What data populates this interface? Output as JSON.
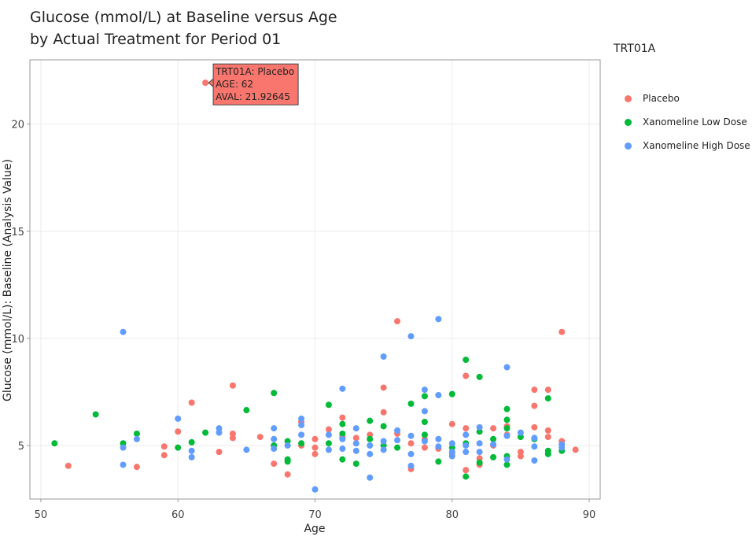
{
  "title_line1": "Glucose (mmol/L) at Baseline versus Age",
  "title_line2": "by Actual Treatment for Period 01",
  "legend": {
    "title": "TRT01A",
    "items": [
      {
        "label": "Placebo",
        "color": "#F8766D"
      },
      {
        "label": "Xanomeline Low Dose",
        "color": "#00BA38"
      },
      {
        "label": "Xanomeline High Dose",
        "color": "#619CFF"
      }
    ]
  },
  "tooltip": {
    "line1": "TRT01A: Placebo",
    "line2": "AGE: 62",
    "line3": "AVAL: 21.92645",
    "age": 62,
    "aval": 21.92645
  },
  "chart_data": {
    "type": "scatter",
    "title": "Glucose (mmol/L) at Baseline versus Age by Actual Treatment for Period 01",
    "xlabel": "Age",
    "ylabel": "Glucose (mmol/L): Baseline (Analysis Value)",
    "xlim": [
      49.2,
      90.8
    ],
    "ylim": [
      2.5,
      23
    ],
    "xticks": [
      50,
      60,
      70,
      80,
      90
    ],
    "yticks": [
      5,
      10,
      15,
      20
    ],
    "grid": true,
    "legend_position": "right",
    "series": [
      {
        "name": "Placebo",
        "color": "#F8766D",
        "points": [
          [
            52,
            4.05
          ],
          [
            57,
            4.0
          ],
          [
            59,
            4.55
          ],
          [
            59,
            4.95
          ],
          [
            60,
            5.65
          ],
          [
            61,
            7.0
          ],
          [
            62,
            21.93
          ],
          [
            63,
            4.7
          ],
          [
            64,
            7.8
          ],
          [
            64,
            5.55
          ],
          [
            64,
            5.35
          ],
          [
            66,
            5.4
          ],
          [
            67,
            4.15
          ],
          [
            68,
            3.65
          ],
          [
            69,
            5.0
          ],
          [
            69,
            6.1
          ],
          [
            70,
            5.3
          ],
          [
            70,
            4.9
          ],
          [
            70,
            4.6
          ],
          [
            71,
            5.75
          ],
          [
            72,
            6.3
          ],
          [
            72,
            5.4
          ],
          [
            73,
            5.35
          ],
          [
            74,
            5.5
          ],
          [
            75,
            7.7
          ],
          [
            75,
            6.55
          ],
          [
            76,
            10.8
          ],
          [
            76,
            5.55
          ],
          [
            77,
            3.9
          ],
          [
            77,
            5.1
          ],
          [
            78,
            5.3
          ],
          [
            78,
            4.9
          ],
          [
            79,
            4.85
          ],
          [
            80,
            6.0
          ],
          [
            80,
            4.6
          ],
          [
            81,
            8.25
          ],
          [
            81,
            5.8
          ],
          [
            81,
            3.85
          ],
          [
            82,
            4.4
          ],
          [
            82,
            4.1
          ],
          [
            83,
            5.8
          ],
          [
            83,
            5.0
          ],
          [
            84,
            5.9
          ],
          [
            84,
            5.5
          ],
          [
            85,
            4.7
          ],
          [
            85,
            4.5
          ],
          [
            86,
            7.6
          ],
          [
            86,
            6.85
          ],
          [
            86,
            5.85
          ],
          [
            87,
            7.6
          ],
          [
            87,
            5.7
          ],
          [
            87,
            5.4
          ],
          [
            88,
            10.3
          ],
          [
            88,
            5.2
          ],
          [
            89,
            4.8
          ]
        ]
      },
      {
        "name": "Xanomeline Low Dose",
        "color": "#00BA38",
        "points": [
          [
            51,
            5.1
          ],
          [
            54,
            6.45
          ],
          [
            56,
            5.1
          ],
          [
            57,
            5.55
          ],
          [
            60,
            4.9
          ],
          [
            61,
            5.15
          ],
          [
            62,
            5.6
          ],
          [
            65,
            6.65
          ],
          [
            67,
            7.45
          ],
          [
            67,
            5.0
          ],
          [
            68,
            5.2
          ],
          [
            68,
            4.35
          ],
          [
            68,
            4.25
          ],
          [
            69,
            5.1
          ],
          [
            71,
            6.9
          ],
          [
            71,
            5.1
          ],
          [
            72,
            6.0
          ],
          [
            72,
            5.55
          ],
          [
            72,
            4.35
          ],
          [
            73,
            4.15
          ],
          [
            74,
            6.15
          ],
          [
            74,
            5.3
          ],
          [
            75,
            5.9
          ],
          [
            75,
            5.0
          ],
          [
            76,
            4.9
          ],
          [
            77,
            6.95
          ],
          [
            78,
            7.3
          ],
          [
            78,
            6.1
          ],
          [
            78,
            5.5
          ],
          [
            79,
            4.25
          ],
          [
            80,
            7.4
          ],
          [
            80,
            4.9
          ],
          [
            81,
            9.0
          ],
          [
            81,
            5.1
          ],
          [
            81,
            3.55
          ],
          [
            82,
            8.2
          ],
          [
            82,
            5.65
          ],
          [
            82,
            4.2
          ],
          [
            83,
            5.3
          ],
          [
            83,
            4.45
          ],
          [
            84,
            6.7
          ],
          [
            84,
            6.2
          ],
          [
            84,
            5.8
          ],
          [
            84,
            4.5
          ],
          [
            84,
            4.1
          ],
          [
            85,
            5.4
          ],
          [
            86,
            5.3
          ],
          [
            87,
            7.2
          ],
          [
            87,
            4.75
          ],
          [
            87,
            4.6
          ],
          [
            88,
            4.75
          ]
        ]
      },
      {
        "name": "Xanomeline High Dose",
        "color": "#619CFF",
        "points": [
          [
            56,
            10.3
          ],
          [
            56,
            4.9
          ],
          [
            56,
            4.1
          ],
          [
            57,
            5.3
          ],
          [
            60,
            6.25
          ],
          [
            61,
            4.75
          ],
          [
            61,
            4.45
          ],
          [
            63,
            5.8
          ],
          [
            63,
            5.6
          ],
          [
            65,
            4.8
          ],
          [
            67,
            5.8
          ],
          [
            67,
            5.3
          ],
          [
            67,
            4.85
          ],
          [
            68,
            5.0
          ],
          [
            69,
            6.25
          ],
          [
            69,
            5.5
          ],
          [
            69,
            5.95
          ],
          [
            70,
            2.95
          ],
          [
            71,
            5.5
          ],
          [
            71,
            4.8
          ],
          [
            72,
            7.65
          ],
          [
            72,
            5.3
          ],
          [
            72,
            4.85
          ],
          [
            73,
            5.8
          ],
          [
            73,
            5.1
          ],
          [
            73,
            4.75
          ],
          [
            74,
            5.0
          ],
          [
            74,
            4.6
          ],
          [
            74,
            3.5
          ],
          [
            75,
            9.15
          ],
          [
            75,
            5.2
          ],
          [
            75,
            4.8
          ],
          [
            76,
            5.7
          ],
          [
            76,
            5.25
          ],
          [
            77,
            10.1
          ],
          [
            77,
            5.45
          ],
          [
            77,
            4.6
          ],
          [
            77,
            4.05
          ],
          [
            78,
            7.6
          ],
          [
            78,
            6.6
          ],
          [
            78,
            5.2
          ],
          [
            79,
            10.9
          ],
          [
            79,
            7.35
          ],
          [
            79,
            5.3
          ],
          [
            79,
            4.95
          ],
          [
            80,
            5.1
          ],
          [
            80,
            4.7
          ],
          [
            80,
            4.5
          ],
          [
            81,
            5.5
          ],
          [
            81,
            5.0
          ],
          [
            81,
            4.7
          ],
          [
            82,
            5.85
          ],
          [
            82,
            5.1
          ],
          [
            82,
            4.7
          ],
          [
            83,
            5.05
          ],
          [
            84,
            8.65
          ],
          [
            84,
            5.45
          ],
          [
            84,
            4.35
          ],
          [
            85,
            5.6
          ],
          [
            86,
            5.35
          ],
          [
            86,
            4.95
          ],
          [
            86,
            4.3
          ],
          [
            88,
            5.05
          ],
          [
            88,
            4.9
          ]
        ]
      }
    ]
  }
}
